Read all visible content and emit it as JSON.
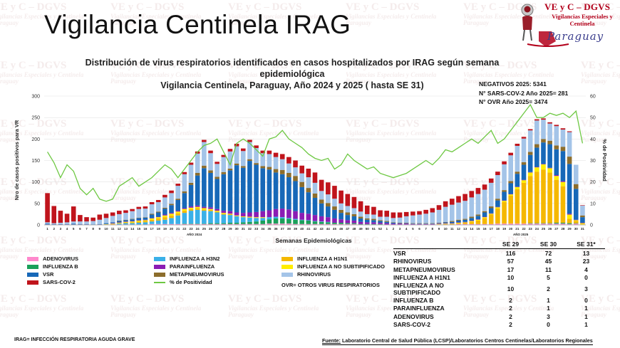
{
  "header": {
    "title": "Vigilancia Centinela IRAG",
    "logo_title": "VE y C – DGVS",
    "logo_subtitle": "Vigilancias Especiales y Centinela",
    "logo_country": "Paraguay",
    "watermark_title": "VE y C – DGVS",
    "watermark_sub": "Vigilancias Especiales y Centinela",
    "watermark_country": "Paraguay"
  },
  "subtitle_line1": "Distribución de virus respiratorios identificados en casos hospitalizados por IRAG según semana epidemiológica",
  "subtitle_line2": "Vigilancia Centinela, Paraguay, Año 2024 y 2025 ( hasta SE 31)",
  "notes": {
    "negativos": "NEGATIVOS 2025: 5341",
    "sars": "N° SARS-COV-2 Año 2025= 281",
    "ovr": "N° OVR Año 2025= 3474"
  },
  "colors": {
    "adenovirus": "#ff88cc",
    "influenza_b": "#1aa05a",
    "vsr": "#1768b8",
    "sars_cov_2": "#c0141c",
    "influenza_a_h3n2": "#3ab0e8",
    "parainfluenza": "#8b1cb4",
    "metapneumovirus": "#8c6d2c",
    "rhinovirus": "#a4c4e8",
    "influenza_a_h1n1": "#f5b800",
    "influenza_a_no_subtipificado": "#ffee00",
    "positividad": "#6ec843"
  },
  "legend": {
    "adenovirus": "ADENOVIRUS",
    "influenza_b": "INFLUENZA B",
    "vsr": "VSR",
    "sars": "SARS-COV-2",
    "h3n2": "INFLUENZA A H3N2",
    "parainfluenza": "PARAINFLUENZA",
    "metapneumovirus": "METAPNEUMOVIRUS",
    "positividad": "% de Positividad",
    "h1n1": "INFLUENZA A H1N1",
    "no_subtipificado": "INFLUENZA A NO SUBTIPIFICADO",
    "rhinovirus": "RHINOVIRUS",
    "ovr_note": "OVR= OTROS VIRUS RESPIRATORIOS"
  },
  "table": {
    "headers": [
      "SE 29",
      "SE 30",
      "SE 31*"
    ],
    "rows": [
      {
        "label": "VSR",
        "values": [
          "116",
          "72",
          "13"
        ]
      },
      {
        "label": "RHINOVIRUS",
        "values": [
          "57",
          "45",
          "23"
        ]
      },
      {
        "label": "METAPNEUMOVIRUS",
        "values": [
          "17",
          "11",
          "4"
        ]
      },
      {
        "label": "INFLUENZA A H1N1",
        "values": [
          "10",
          "5",
          "0"
        ]
      },
      {
        "label": "INFLUENZA A NO SUBTIPIFICADO",
        "values": [
          "10",
          "2",
          "3"
        ]
      },
      {
        "label": "INFLUENZA B",
        "values": [
          "2",
          "1",
          "0"
        ]
      },
      {
        "label": "PARAINFLUENZA",
        "values": [
          "2",
          "1",
          "1"
        ]
      },
      {
        "label": "ADENOVIRUS",
        "values": [
          "2",
          "3",
          "1"
        ]
      },
      {
        "label": "SARS-COV-2",
        "values": [
          "2",
          "0",
          "1"
        ]
      }
    ]
  },
  "footer": {
    "irag": "IRAG= INFECCIÓN RESPIRATORIA AGUDA GRAVE",
    "source_label": "Fuente:",
    "source_text": " Laboratorio Central de Salud Pública (LCSP)/Laboratorios Centros Centinelas/Laboratorios Regionales"
  },
  "chart_data": {
    "type": "bar",
    "stacked": true,
    "title": "",
    "xlabel": "Semanas Epidemiológicas",
    "ylabel": "Nro de casos positivos para VR",
    "y2label": "% de Positividad",
    "ylim": [
      0,
      300
    ],
    "y2lim": [
      0,
      60
    ],
    "yticks": [
      0,
      50,
      100,
      150,
      200,
      250,
      300
    ],
    "y2ticks": [
      0,
      10,
      20,
      30,
      40,
      50,
      60
    ],
    "year_labels": [
      "AÑO 2024",
      "AÑO 2025"
    ],
    "categories": [
      "1",
      "2",
      "3",
      "4",
      "5",
      "6",
      "7",
      "8",
      "9",
      "10",
      "11",
      "12",
      "13",
      "14",
      "15",
      "16",
      "17",
      "18",
      "19",
      "20",
      "21",
      "22",
      "23",
      "24",
      "25",
      "26",
      "27",
      "28",
      "29",
      "30",
      "31",
      "32",
      "33",
      "34",
      "35",
      "36",
      "37",
      "38",
      "39",
      "40",
      "41",
      "42",
      "43",
      "44",
      "45",
      "46",
      "47",
      "48",
      "49",
      "50",
      "51",
      "52",
      "1",
      "2",
      "3",
      "4",
      "5",
      "6",
      "7",
      "8",
      "9",
      "10",
      "11",
      "12",
      "13",
      "14",
      "15",
      "16",
      "17",
      "18",
      "19",
      "20",
      "21",
      "22",
      "23",
      "24",
      "25",
      "26",
      "27",
      "28",
      "29",
      "30",
      "31"
    ],
    "series": [
      {
        "name": "ADENOVIRUS",
        "key": "adenovirus",
        "values": [
          1,
          1,
          1,
          1,
          1,
          1,
          1,
          0,
          1,
          1,
          1,
          1,
          1,
          1,
          1,
          1,
          2,
          2,
          2,
          2,
          2,
          2,
          2,
          2,
          2,
          2,
          2,
          2,
          2,
          2,
          2,
          2,
          2,
          2,
          3,
          3,
          3,
          3,
          2,
          2,
          2,
          2,
          2,
          2,
          2,
          2,
          2,
          2,
          1,
          1,
          1,
          1,
          1,
          1,
          1,
          1,
          1,
          1,
          1,
          1,
          1,
          1,
          1,
          2,
          2,
          2,
          2,
          2,
          2,
          3,
          3,
          3,
          3,
          3,
          3,
          3,
          3,
          3,
          3,
          3,
          2,
          3,
          1
        ]
      },
      {
        "name": "INFLUENZA B",
        "key": "influenza_b",
        "values": [
          0,
          0,
          0,
          0,
          0,
          0,
          0,
          0,
          0,
          0,
          0,
          0,
          0,
          0,
          0,
          0,
          0,
          0,
          0,
          0,
          0,
          1,
          1,
          1,
          1,
          2,
          2,
          2,
          3,
          3,
          4,
          5,
          6,
          8,
          10,
          12,
          12,
          11,
          10,
          9,
          8,
          6,
          5,
          4,
          3,
          3,
          2,
          2,
          1,
          1,
          1,
          1,
          0,
          0,
          0,
          0,
          0,
          0,
          0,
          0,
          0,
          0,
          0,
          0,
          0,
          0,
          0,
          0,
          0,
          0,
          0,
          0,
          0,
          0,
          1,
          1,
          1,
          1,
          2,
          2,
          2,
          1,
          0
        ]
      },
      {
        "name": "INFLUENZA A H3N2",
        "key": "influenza_a_h3n2",
        "values": [
          0,
          0,
          0,
          0,
          0,
          0,
          0,
          0,
          0,
          0,
          0,
          2,
          3,
          3,
          4,
          5,
          6,
          8,
          10,
          14,
          20,
          25,
          30,
          32,
          30,
          28,
          25,
          20,
          18,
          15,
          12,
          10,
          8,
          6,
          5,
          4,
          3,
          2,
          2,
          1,
          1,
          1,
          1,
          1,
          0,
          0,
          0,
          0,
          0,
          0,
          0,
          0,
          0,
          0,
          0,
          0,
          0,
          0,
          0,
          0,
          0,
          0,
          0,
          0,
          0,
          0,
          0,
          0,
          0,
          0,
          0,
          0,
          0,
          0,
          0,
          0,
          0,
          0,
          0,
          0,
          0,
          0,
          0
        ]
      },
      {
        "name": "INFLUENZA A H1N1",
        "key": "influenza_a_h1n1",
        "values": [
          0,
          0,
          0,
          0,
          0,
          0,
          0,
          0,
          0,
          0,
          1,
          1,
          2,
          2,
          3,
          3,
          4,
          5,
          6,
          6,
          5,
          5,
          4,
          4,
          3,
          3,
          2,
          2,
          2,
          1,
          1,
          1,
          1,
          1,
          0,
          0,
          0,
          0,
          0,
          0,
          0,
          0,
          0,
          0,
          0,
          0,
          0,
          0,
          0,
          0,
          0,
          0,
          0,
          0,
          0,
          0,
          0,
          0,
          0,
          0,
          0,
          1,
          1,
          2,
          3,
          5,
          8,
          14,
          22,
          35,
          50,
          65,
          80,
          95,
          110,
          120,
          125,
          118,
          100,
          85,
          10,
          5,
          0
        ]
      },
      {
        "name": "INFLUENZA A NO SUBTIPIFICADO",
        "key": "influenza_a_no_subtipificado",
        "values": [
          0,
          0,
          0,
          0,
          0,
          0,
          0,
          0,
          0,
          1,
          1,
          1,
          1,
          2,
          2,
          2,
          3,
          3,
          4,
          4,
          4,
          4,
          3,
          3,
          3,
          2,
          2,
          2,
          1,
          1,
          1,
          1,
          1,
          1,
          0,
          0,
          0,
          0,
          0,
          0,
          0,
          0,
          0,
          0,
          0,
          0,
          0,
          0,
          0,
          0,
          0,
          0,
          0,
          0,
          0,
          0,
          0,
          0,
          0,
          0,
          1,
          1,
          1,
          1,
          1,
          2,
          2,
          2,
          2,
          3,
          3,
          3,
          5,
          6,
          8,
          10,
          12,
          10,
          9,
          10,
          10,
          2,
          3
        ]
      },
      {
        "name": "PARAINFLUENZA",
        "key": "parainfluenza",
        "values": [
          0,
          0,
          0,
          0,
          0,
          0,
          0,
          0,
          0,
          0,
          1,
          1,
          1,
          1,
          1,
          1,
          1,
          1,
          2,
          2,
          2,
          2,
          3,
          3,
          3,
          4,
          4,
          5,
          6,
          7,
          8,
          10,
          12,
          14,
          16,
          18,
          20,
          20,
          18,
          16,
          15,
          14,
          12,
          11,
          10,
          8,
          7,
          6,
          5,
          4,
          4,
          3,
          3,
          2,
          2,
          2,
          1,
          1,
          1,
          1,
          1,
          1,
          1,
          1,
          1,
          1,
          1,
          1,
          1,
          1,
          1,
          1,
          1,
          1,
          1,
          1,
          1,
          1,
          2,
          2,
          2,
          1,
          1
        ]
      },
      {
        "name": "VSR",
        "key": "vsr",
        "values": [
          2,
          1,
          1,
          1,
          2,
          1,
          1,
          1,
          1,
          2,
          2,
          3,
          3,
          4,
          5,
          5,
          8,
          10,
          14,
          18,
          25,
          35,
          50,
          70,
          90,
          80,
          70,
          85,
          95,
          110,
          105,
          120,
          110,
          100,
          95,
          85,
          80,
          75,
          70,
          60,
          50,
          40,
          30,
          25,
          20,
          15,
          12,
          10,
          8,
          6,
          5,
          4,
          3,
          2,
          1,
          1,
          1,
          1,
          1,
          1,
          1,
          2,
          3,
          4,
          5,
          6,
          8,
          10,
          12,
          15,
          20,
          25,
          30,
          35,
          40,
          45,
          50,
          55,
          60,
          70,
          116,
          72,
          13
        ]
      },
      {
        "name": "METAPNEUMOVIRUS",
        "key": "metapneumovirus",
        "values": [
          0,
          0,
          0,
          0,
          0,
          0,
          0,
          0,
          0,
          0,
          0,
          1,
          1,
          1,
          1,
          1,
          2,
          2,
          2,
          3,
          3,
          4,
          5,
          6,
          6,
          6,
          5,
          5,
          4,
          4,
          4,
          4,
          4,
          5,
          6,
          8,
          10,
          10,
          12,
          12,
          10,
          10,
          9,
          8,
          8,
          7,
          6,
          5,
          4,
          3,
          3,
          2,
          2,
          1,
          1,
          1,
          1,
          1,
          1,
          1,
          1,
          1,
          2,
          2,
          2,
          3,
          3,
          3,
          4,
          4,
          4,
          5,
          5,
          6,
          7,
          8,
          8,
          8,
          9,
          10,
          17,
          11,
          4
        ]
      },
      {
        "name": "RHINOVIRUS",
        "key": "rhinovirus",
        "values": [
          3,
          2,
          3,
          4,
          5,
          6,
          6,
          8,
          10,
          12,
          15,
          15,
          16,
          18,
          20,
          20,
          22,
          22,
          24,
          25,
          30,
          40,
          42,
          45,
          55,
          40,
          30,
          35,
          40,
          40,
          35,
          40,
          35,
          30,
          30,
          28,
          25,
          22,
          20,
          20,
          25,
          25,
          20,
          20,
          18,
          15,
          15,
          14,
          12,
          10,
          10,
          8,
          10,
          10,
          12,
          15,
          18,
          20,
          22,
          25,
          30,
          35,
          38,
          40,
          42,
          45,
          48,
          50,
          55,
          55,
          60,
          60,
          60,
          55,
          50,
          55,
          45,
          40,
          45,
          40,
          57,
          45,
          23
        ]
      },
      {
        "name": "SARS-COV-2",
        "key": "sars_cov_2",
        "values": [
          68,
          40,
          28,
          20,
          35,
          15,
          10,
          8,
          12,
          10,
          8,
          8,
          6,
          5,
          5,
          5,
          5,
          5,
          6,
          6,
          5,
          5,
          5,
          5,
          5,
          6,
          5,
          5,
          6,
          6,
          6,
          5,
          6,
          6,
          8,
          10,
          12,
          15,
          16,
          18,
          20,
          24,
          26,
          28,
          30,
          30,
          28,
          26,
          24,
          20,
          18,
          15,
          14,
          13,
          12,
          10,
          9,
          8,
          9,
          10,
          11,
          13,
          14,
          15,
          16,
          15,
          14,
          12,
          10,
          8,
          7,
          6,
          5,
          4,
          3,
          3,
          3,
          3,
          3,
          3,
          2,
          0,
          1
        ]
      }
    ],
    "positividad": [
      34,
      29,
      22,
      28,
      25,
      17,
      14,
      17,
      12,
      11,
      12,
      18,
      20,
      22,
      18,
      20,
      22,
      25,
      28,
      26,
      22,
      26,
      30,
      34,
      37,
      38,
      40,
      34,
      28,
      38,
      40,
      38,
      35,
      32,
      40,
      41,
      44,
      40,
      38,
      36,
      33,
      31,
      30,
      31,
      26,
      28,
      33,
      30,
      28,
      26,
      27,
      24,
      23,
      22,
      23,
      24,
      26,
      28,
      30,
      28,
      31,
      35,
      34,
      36,
      38,
      40,
      38,
      41,
      44,
      38,
      40,
      44,
      48,
      52,
      56,
      50,
      50,
      52,
      51,
      52,
      50,
      53,
      38
    ]
  }
}
